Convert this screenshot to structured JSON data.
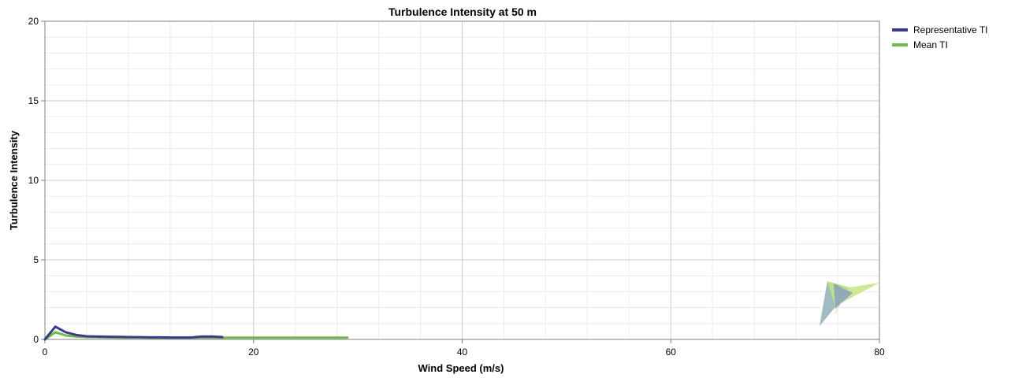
{
  "chart_data": {
    "type": "line",
    "title": "Turbulence Intensity at 50 m",
    "xlabel": "Wind Speed (m/s)",
    "ylabel": "Turbulence Intensity",
    "xlim": [
      0,
      80
    ],
    "ylim": [
      0,
      20
    ],
    "xticks": [
      0,
      20,
      40,
      60,
      80
    ],
    "yticks": [
      0,
      5,
      10,
      15,
      20
    ],
    "grid": true,
    "legend": "top-right",
    "series": [
      {
        "name": "Representative TI",
        "color": "#3b3b8c",
        "x": [
          0,
          1,
          2,
          3,
          4,
          5,
          6,
          7,
          8,
          9,
          10,
          11,
          12,
          13,
          14,
          15,
          16,
          17
        ],
        "y": [
          0,
          0.8,
          0.45,
          0.28,
          0.2,
          0.18,
          0.17,
          0.16,
          0.15,
          0.14,
          0.13,
          0.13,
          0.12,
          0.12,
          0.12,
          0.18,
          0.18,
          0.15
        ]
      },
      {
        "name": "Mean TI",
        "color": "#72bb4a",
        "x": [
          0,
          1,
          2,
          3,
          4,
          5,
          6,
          7,
          8,
          9,
          10,
          11,
          12,
          13,
          14,
          15,
          16,
          17,
          18,
          19,
          20,
          21,
          22,
          23,
          24,
          25,
          26,
          27,
          28,
          29
        ],
        "y": [
          0,
          0.45,
          0.25,
          0.18,
          0.15,
          0.14,
          0.13,
          0.12,
          0.12,
          0.12,
          0.11,
          0.11,
          0.11,
          0.11,
          0.11,
          0.11,
          0.11,
          0.11,
          0.11,
          0.11,
          0.11,
          0.11,
          0.11,
          0.11,
          0.11,
          0.11,
          0.11,
          0.11,
          0.11,
          0.11
        ]
      }
    ]
  },
  "colors": {
    "grid_major": "#cfcfcf",
    "grid_minor": "#ececec",
    "axis": "#808080"
  },
  "watermark": "chart-vendor-logo"
}
